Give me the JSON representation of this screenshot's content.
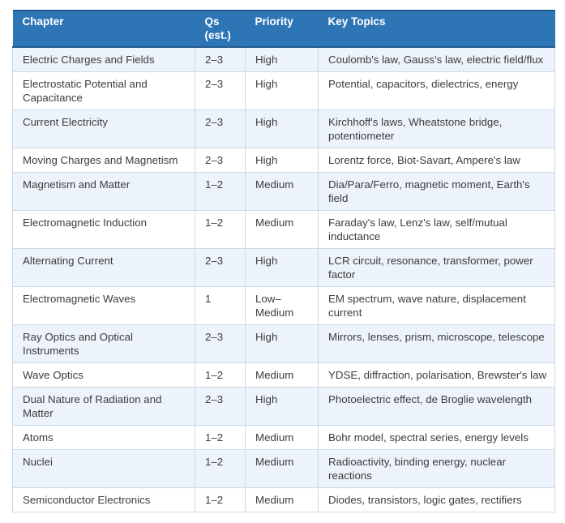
{
  "colors": {
    "header_bg": "#2E75B5",
    "header_rule": "#1E5A8E",
    "header_text": "#FFFFFF",
    "stripe_bg": "#EDF3FA",
    "cell_border": "#CCD9E8",
    "body_text": "#3C3C3C"
  },
  "table": {
    "columns": [
      {
        "label": "Chapter"
      },
      {
        "label": "Qs (est.)"
      },
      {
        "label": "Priority"
      },
      {
        "label": "Key Topics"
      }
    ],
    "rows": [
      {
        "chapter": "Electric Charges and Fields",
        "qs": "2–3",
        "priority": "High",
        "topics": "Coulomb's law, Gauss's law, electric field/flux"
      },
      {
        "chapter": "Electrostatic Potential and Capacitance",
        "qs": "2–3",
        "priority": "High",
        "topics": "Potential, capacitors, dielectrics, energy"
      },
      {
        "chapter": "Current Electricity",
        "qs": "2–3",
        "priority": "High",
        "topics": "Kirchhoff's laws, Wheatstone bridge, potentiometer"
      },
      {
        "chapter": "Moving Charges and Magnetism",
        "qs": "2–3",
        "priority": "High",
        "topics": "Lorentz force, Biot-Savart, Ampere's law"
      },
      {
        "chapter": "Magnetism and Matter",
        "qs": "1–2",
        "priority": "Medium",
        "topics": "Dia/Para/Ferro, magnetic moment, Earth's field"
      },
      {
        "chapter": "Electromagnetic Induction",
        "qs": "1–2",
        "priority": "Medium",
        "topics": "Faraday's law, Lenz's law, self/mutual inductance"
      },
      {
        "chapter": "Alternating Current",
        "qs": "2–3",
        "priority": "High",
        "topics": "LCR circuit, resonance, transformer, power factor"
      },
      {
        "chapter": "Electromagnetic Waves",
        "qs": "1",
        "priority": "Low–Medium",
        "topics": "EM spectrum, wave nature, displacement current"
      },
      {
        "chapter": "Ray Optics and Optical Instruments",
        "qs": "2–3",
        "priority": "High",
        "topics": "Mirrors, lenses, prism, microscope, telescope"
      },
      {
        "chapter": "Wave Optics",
        "qs": "1–2",
        "priority": "Medium",
        "topics": "YDSE, diffraction, polarisation, Brewster's law"
      },
      {
        "chapter": "Dual Nature of Radiation and Matter",
        "qs": "2–3",
        "priority": "High",
        "topics": "Photoelectric effect, de Broglie wavelength"
      },
      {
        "chapter": "Atoms",
        "qs": "1–2",
        "priority": "Medium",
        "topics": "Bohr model, spectral series, energy levels"
      },
      {
        "chapter": "Nuclei",
        "qs": "1–2",
        "priority": "Medium",
        "topics": "Radioactivity, binding energy, nuclear reactions"
      },
      {
        "chapter": "Semiconductor Electronics",
        "qs": "1–2",
        "priority": "Medium",
        "topics": "Diodes, transistors, logic gates, rectifiers"
      }
    ]
  }
}
